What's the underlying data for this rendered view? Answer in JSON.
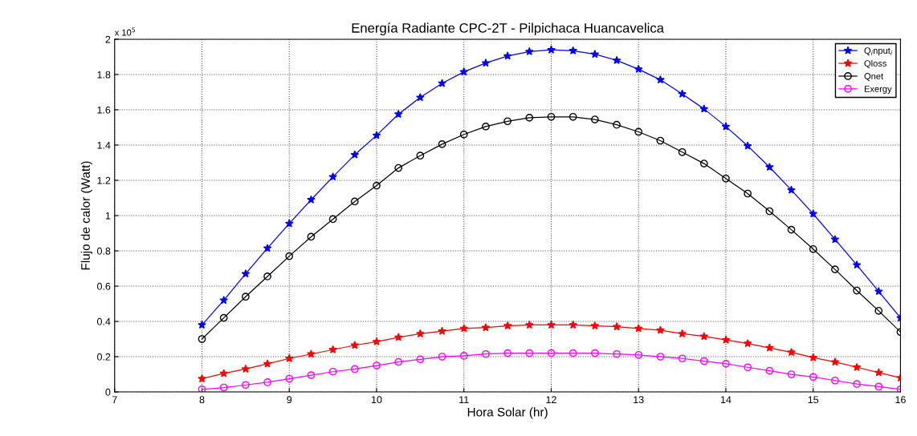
{
  "chart_data": {
    "type": "line",
    "title": "Energía Radiante CPC-2T - Pilpichaca Huancavelica",
    "xlabel": "Hora Solar (hr)",
    "ylabel": "Flujo de calor (Watt)",
    "annotations": [
      "x 10$^{5}$"
    ],
    "x": [
      8,
      8.25,
      8.5,
      8.75,
      9,
      9.25,
      9.5,
      9.75,
      10,
      10.25,
      10.5,
      10.75,
      11,
      11.25,
      11.5,
      11.75,
      12,
      12.25,
      12.5,
      12.75,
      13,
      13.25,
      13.5,
      13.75,
      14,
      14.25,
      14.5,
      14.75,
      15,
      15.25,
      15.5,
      15.75,
      16
    ],
    "series": [
      {
        "name": "Q$_{i}$nput$_{i}$",
        "color": "#0000ff",
        "marker": "star",
        "values": [
          0.38,
          0.52,
          0.67,
          0.815,
          0.955,
          1.09,
          1.22,
          1.345,
          1.455,
          1.575,
          1.67,
          1.75,
          1.815,
          1.865,
          1.905,
          1.93,
          1.94,
          1.935,
          1.915,
          1.88,
          1.83,
          1.77,
          1.69,
          1.605,
          1.505,
          1.395,
          1.275,
          1.145,
          1.01,
          0.865,
          0.72,
          0.57,
          0.42
        ]
      },
      {
        "name": "Qloss",
        "color": "#ff0000",
        "marker": "star",
        "values": [
          0.075,
          0.105,
          0.13,
          0.16,
          0.19,
          0.215,
          0.24,
          0.265,
          0.285,
          0.31,
          0.33,
          0.345,
          0.36,
          0.365,
          0.375,
          0.38,
          0.38,
          0.38,
          0.375,
          0.37,
          0.36,
          0.35,
          0.33,
          0.315,
          0.295,
          0.275,
          0.25,
          0.225,
          0.195,
          0.17,
          0.14,
          0.11,
          0.08
        ]
      },
      {
        "name": "Qnet",
        "color": "#000000",
        "marker": "circle",
        "values": [
          0.3,
          0.42,
          0.54,
          0.655,
          0.77,
          0.88,
          0.98,
          1.08,
          1.17,
          1.27,
          1.34,
          1.405,
          1.46,
          1.505,
          1.535,
          1.555,
          1.56,
          1.56,
          1.545,
          1.515,
          1.475,
          1.425,
          1.36,
          1.295,
          1.21,
          1.125,
          1.025,
          0.92,
          0.81,
          0.695,
          0.575,
          0.46,
          0.34
        ]
      },
      {
        "name": "Exergy",
        "color": "#ff00ff",
        "marker": "circle",
        "values": [
          0.015,
          0.025,
          0.04,
          0.055,
          0.075,
          0.095,
          0.115,
          0.13,
          0.15,
          0.17,
          0.185,
          0.2,
          0.205,
          0.215,
          0.22,
          0.22,
          0.22,
          0.22,
          0.22,
          0.215,
          0.21,
          0.2,
          0.19,
          0.175,
          0.16,
          0.14,
          0.12,
          0.1,
          0.085,
          0.065,
          0.045,
          0.03,
          0.015
        ]
      }
    ],
    "xlim": [
      7,
      16
    ],
    "xticks": [
      7,
      8,
      9,
      10,
      11,
      12,
      13,
      14,
      15,
      16
    ],
    "ylim": [
      0,
      2
    ],
    "yticks": [
      0,
      0.2,
      0.4,
      0.6,
      0.8,
      1,
      1.2,
      1.4,
      1.6,
      1.8,
      2
    ],
    "grid": true,
    "legend": "top right",
    "line_style": "solid"
  }
}
